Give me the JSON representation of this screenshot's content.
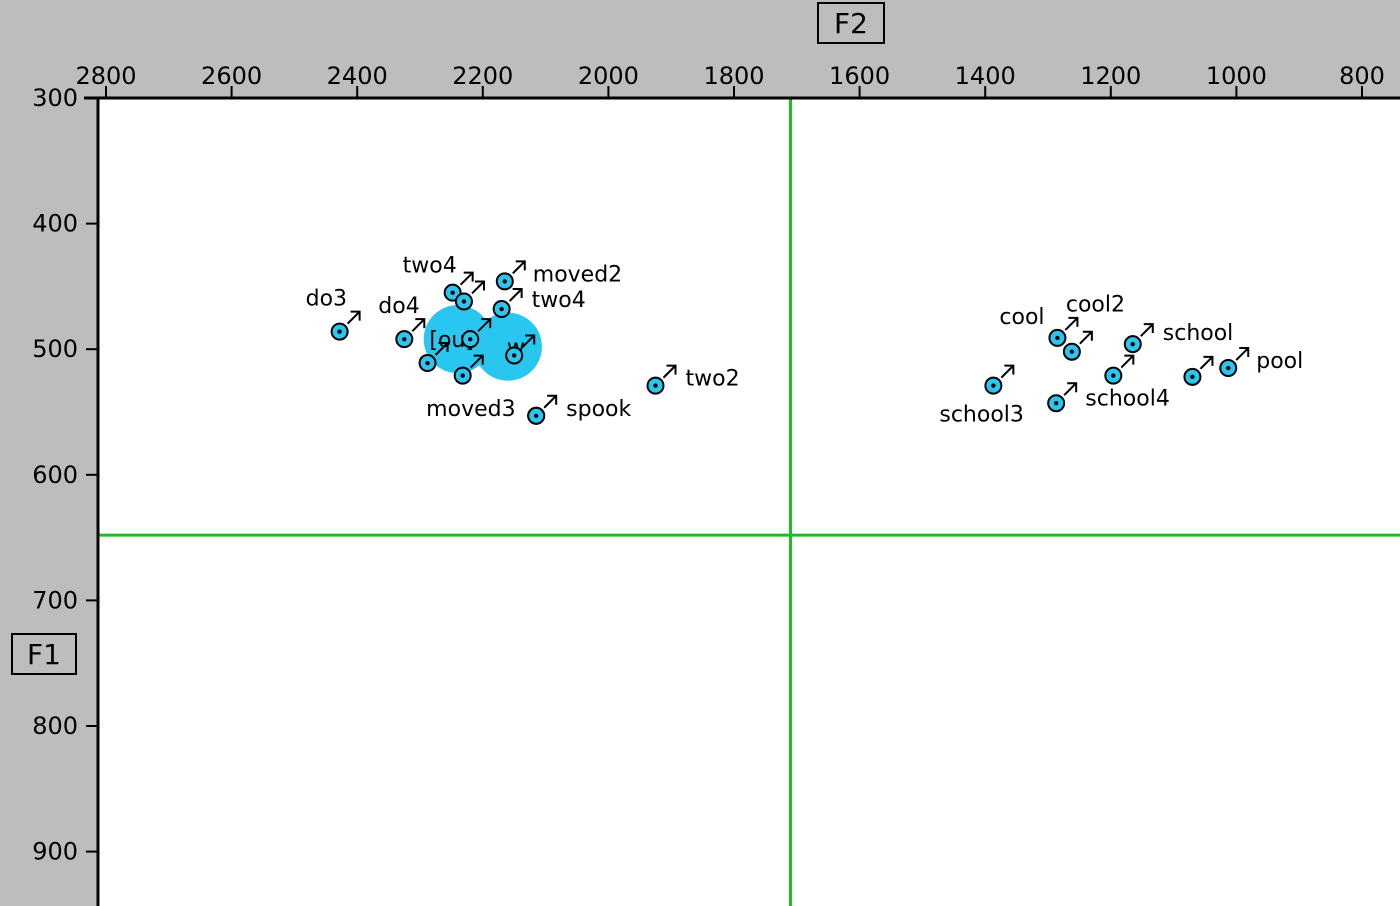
{
  "axis_titles": {
    "x": "F2",
    "y": "F1"
  },
  "colors": {
    "background": "#bdbdbd",
    "plot": "#ffffff",
    "marker": "#29c6f0",
    "guide": "#22bb22",
    "axis": "#000000"
  },
  "chart_data": {
    "type": "scatter",
    "title": "",
    "xlabel": "F2",
    "ylabel": "F1",
    "xlim": [
      2800,
      700
    ],
    "ylim": [
      300,
      940
    ],
    "x_reversed": true,
    "x_ticks": [
      2800,
      2600,
      2400,
      2200,
      2000,
      1800,
      1600,
      1400,
      1200,
      1000,
      800
    ],
    "y_ticks": [
      300,
      400,
      500,
      600,
      700,
      800,
      900
    ],
    "guide_lines": {
      "x": 1710,
      "y": 648
    },
    "grid": false,
    "legend": "none",
    "means": [
      {
        "x": 2240,
        "y": 492,
        "label": "[ou]"
      },
      {
        "x": 2160,
        "y": 498,
        "label": "w"
      }
    ],
    "points": [
      {
        "label": "do3",
        "x": 2428,
        "y": 486
      },
      {
        "label": "do4",
        "x": 2325,
        "y": 492
      },
      {
        "label": "two4",
        "x": 2248,
        "y": 455
      },
      {
        "label": "",
        "x": 2230,
        "y": 462
      },
      {
        "label": "moved2",
        "x": 2165,
        "y": 446
      },
      {
        "label": "two4",
        "x": 2170,
        "y": 468
      },
      {
        "label": "",
        "x": 2288,
        "y": 511
      },
      {
        "label": "",
        "x": 2232,
        "y": 521
      },
      {
        "label": "",
        "x": 2220,
        "y": 492
      },
      {
        "label": "",
        "x": 2150,
        "y": 505
      },
      {
        "label": "moved3",
        "x": 2115,
        "y": 553
      },
      {
        "label": "spook",
        "x": 2115,
        "y": 553
      },
      {
        "label": "two2",
        "x": 1925,
        "y": 529
      },
      {
        "label": "cool",
        "x": 1285,
        "y": 491
      },
      {
        "label": "cool2",
        "x": 1262,
        "y": 502
      },
      {
        "label": "school",
        "x": 1165,
        "y": 496
      },
      {
        "label": "pool",
        "x": 1013,
        "y": 515
      },
      {
        "label": "school3",
        "x": 1387,
        "y": 529
      },
      {
        "label": "",
        "x": 1070,
        "y": 522
      },
      {
        "label": "school4",
        "x": 1196,
        "y": 521
      },
      {
        "label": "",
        "x": 1287,
        "y": 543
      }
    ]
  }
}
